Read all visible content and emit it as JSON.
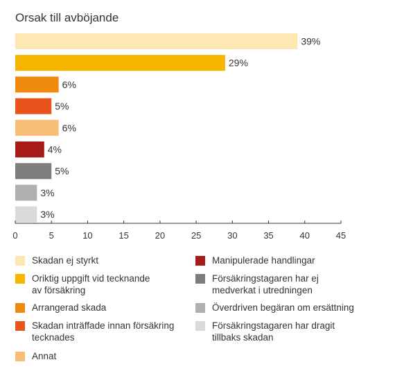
{
  "chart_data": {
    "type": "bar",
    "orientation": "horizontal",
    "title": "Orsak till avböjande",
    "xlim": [
      0,
      45
    ],
    "xticks": [
      0,
      5,
      10,
      15,
      20,
      25,
      30,
      35,
      40,
      45
    ],
    "grid": false,
    "legend_position": "bottom",
    "categories": [
      "Skadan ej styrkt",
      "Oriktig uppgift vid tecknande av försäkring",
      "Arrangerad skada",
      "Skadan inträffade innan försäkring tecknades",
      "Annat",
      "Manipulerade handlingar",
      "Försäkringstagaren har ej medverkat i utredningen",
      "Överdriven begäran om ersättning",
      "Försäkringstagaren har dragit tillbaks skadan"
    ],
    "values": [
      39,
      29,
      6,
      5,
      6,
      4,
      5,
      3,
      3
    ],
    "labels": [
      "39%",
      "29%",
      "6%",
      "5%",
      "6%",
      "4%",
      "5%",
      "3%",
      "3%"
    ],
    "colors": [
      "#FDE8B4",
      "#F7B500",
      "#EF8A0C",
      "#E9531C",
      "#F8BE78",
      "#A71C19",
      "#7D7D7D",
      "#B0B0B0",
      "#DADADA"
    ]
  },
  "legend": {
    "left": [
      {
        "text": "Skadan ej styrkt",
        "color": "#FDE8B4"
      },
      {
        "text": "Oriktig uppgift vid tecknande\nav försäkring",
        "color": "#F7B500"
      },
      {
        "text": "Arrangerad skada",
        "color": "#EF8A0C"
      },
      {
        "text": "Skadan inträffade innan försäkring\ntecknades",
        "color": "#E9531C"
      },
      {
        "text": "Annat",
        "color": "#F8BE78"
      }
    ],
    "right": [
      {
        "text": "Manipulerade handlingar",
        "color": "#A71C19"
      },
      {
        "text": "Försäkringstagaren har ej\nmedverkat i utredningen",
        "color": "#7D7D7D"
      },
      {
        "text": "Överdriven begäran om ersättning",
        "color": "#B0B0B0"
      },
      {
        "text": "Försäkringstagaren har dragit\ntillbaks skadan",
        "color": "#DADADA"
      }
    ]
  }
}
